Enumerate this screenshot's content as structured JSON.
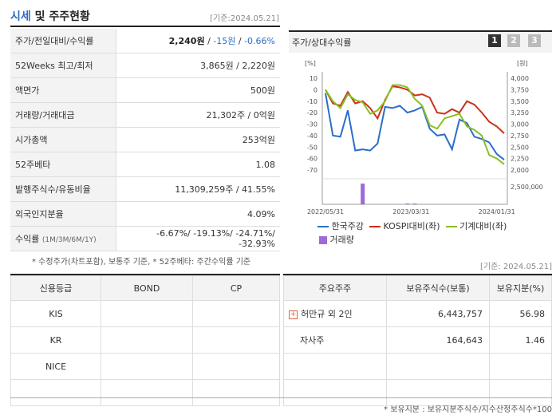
{
  "header": {
    "title_highlight": "시세",
    "title_rest": " 및 주주현황",
    "date": "[기준:2024.05.21]"
  },
  "info_rows": [
    {
      "label": "주가/전일대비/수익률",
      "value_main": "2,240원",
      "value_sep1": " / ",
      "value_change": "-15원",
      "value_sep2": " / ",
      "value_rate": "-0.66%"
    },
    {
      "label": "52Weeks 최고/최저",
      "value": "3,865원 / 2,220원"
    },
    {
      "label": "액면가",
      "value": "500원"
    },
    {
      "label": "거래량/거래대금",
      "value": "21,302주 / 0억원"
    },
    {
      "label": "시가총액",
      "value": "253억원"
    },
    {
      "label": "52주베타",
      "value": "1.08"
    },
    {
      "label": "발행주식수/유동비율",
      "value": "11,309,259주 / 41.55%"
    },
    {
      "label": "외국인지분율",
      "value": "4.09%"
    },
    {
      "label": "수익률",
      "label_small": "(1M/3M/6M/1Y)",
      "value": "-6.67%/ -19.13%/ -24.71%/ -32.93%"
    }
  ],
  "note1": "* 수정주가(차트포함), 보통주 기준, * 52주베타: 주간수익률 기준",
  "chart_panel": {
    "title": "주가/상대수익률",
    "tabs": [
      "1",
      "2",
      "3"
    ]
  },
  "chart_data": {
    "type": "line",
    "left_axis_unit": "[%]",
    "right_axis_unit": "[원]",
    "left_ticks": [
      "10",
      "0",
      "-10",
      "-20",
      "-30",
      "-40",
      "-50",
      "-60",
      "-70"
    ],
    "right_ticks": [
      "4,000",
      "3,750",
      "3,500",
      "3,250",
      "3,000",
      "2,750",
      "2,500",
      "2,250",
      "2,000"
    ],
    "volume_tick": "2,500,000",
    "x_ticks": [
      "2022/05/31",
      "2023/03/31",
      "2024/01/31"
    ],
    "ylim_left": [
      -70,
      10
    ],
    "ylim_right": [
      2000,
      4000
    ],
    "series": [
      {
        "name": "한국주강",
        "color": "#2a6fc9",
        "values": [
          -3,
          -40,
          -41,
          -18,
          -53,
          -52,
          -53,
          -47,
          -15,
          -16,
          -14,
          -20,
          -18,
          -15,
          -34,
          -40,
          -39,
          -52,
          -26,
          -29,
          -41,
          -43,
          -46,
          -56,
          -61
        ]
      },
      {
        "name": "KOSPI대비(좌)",
        "color": "#c83218",
        "values": [
          0,
          -12,
          -14,
          -2,
          -12,
          -10,
          -16,
          -25,
          -9,
          3,
          2,
          0,
          -5,
          -4,
          -7,
          -20,
          -21,
          -17,
          -20,
          -10,
          -13,
          -20,
          -28,
          -32,
          -38
        ]
      },
      {
        "name": "기계대비(좌)",
        "color": "#88c020",
        "values": [
          0,
          -10,
          -16,
          -4,
          -9,
          -11,
          -21,
          -18,
          -10,
          4,
          4,
          2,
          -8,
          -14,
          -31,
          -34,
          -25,
          -23,
          -21,
          -32,
          -35,
          -40,
          -57,
          -60,
          -65
        ]
      }
    ],
    "volume_series": {
      "name": "거래량",
      "color": "#9d6ad6",
      "values": [
        0,
        0,
        0,
        0,
        0,
        2500000,
        0,
        0,
        0,
        0,
        0,
        30000,
        40000,
        0,
        0,
        0,
        0,
        0,
        0,
        0,
        0,
        0,
        0,
        0,
        0
      ]
    }
  },
  "legend": [
    {
      "name": "한국주강",
      "color": "#2a6fc9",
      "shape": "line"
    },
    {
      "name": "KOSPI대비(좌)",
      "color": "#c83218",
      "shape": "line"
    },
    {
      "name": "기계대비(좌)",
      "color": "#88c020",
      "shape": "line"
    },
    {
      "name": "거래량",
      "color": "#9d6ad6",
      "shape": "box"
    }
  ],
  "mid_date": "[기준: 2024.05.21]",
  "credit": {
    "headers": [
      "신용등급",
      "BOND",
      "CP"
    ],
    "rows": [
      {
        "agency": "KIS",
        "bond": "",
        "cp": ""
      },
      {
        "agency": "KR",
        "bond": "",
        "cp": ""
      },
      {
        "agency": "NICE",
        "bond": "",
        "cp": ""
      },
      {
        "agency": "",
        "bond": "",
        "cp": ""
      }
    ]
  },
  "holders": {
    "headers": [
      "주요주주",
      "보유주식수(보통)",
      "보유지분(%)"
    ],
    "rows": [
      {
        "name": "허만규 외 2인",
        "shares": "6,443,757",
        "pct": "56.98",
        "expand_icon": "plus-icon"
      },
      {
        "name": "자사주",
        "shares": "164,643",
        "pct": "1.46"
      },
      {
        "name": "",
        "shares": "",
        "pct": ""
      },
      {
        "name": "",
        "shares": "",
        "pct": ""
      }
    ]
  },
  "note2": "* 보유지분 : 보유지분주식수/지수산정주식수*100"
}
